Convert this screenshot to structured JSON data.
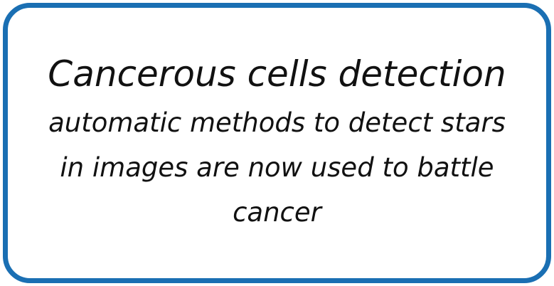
{
  "card": {
    "title": "Cancerous cells detection",
    "body": "automatic methods to detect stars in images are now used to battle cancer",
    "border_color": "#1a6fb3"
  }
}
